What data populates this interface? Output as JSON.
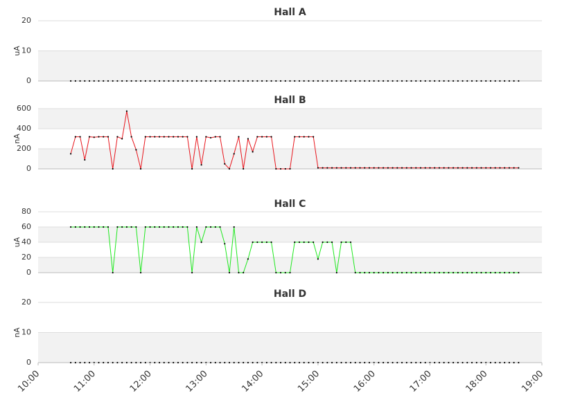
{
  "chart_data": [
    {
      "type": "line",
      "title": "Hall A",
      "ylabel": "uA",
      "x": [
        "10:35",
        "10:40",
        "10:45",
        "10:50",
        "10:55",
        "11:00",
        "11:05",
        "11:10",
        "11:15",
        "11:20",
        "11:25",
        "11:30",
        "11:35",
        "11:40",
        "11:45",
        "11:50",
        "11:55",
        "12:00",
        "12:05",
        "12:10",
        "12:15",
        "12:20",
        "12:25",
        "12:30",
        "12:35",
        "12:40",
        "12:45",
        "12:50",
        "12:55",
        "13:00",
        "13:05",
        "13:10",
        "13:15",
        "13:20",
        "13:25",
        "13:30",
        "13:35",
        "13:40",
        "13:45",
        "13:50",
        "13:55",
        "14:00",
        "14:05",
        "14:10",
        "14:15",
        "14:20",
        "14:25",
        "14:30",
        "14:35",
        "14:40",
        "14:45",
        "14:50",
        "14:55",
        "15:00",
        "15:05",
        "15:10",
        "15:15",
        "15:20",
        "15:25",
        "15:30",
        "15:35",
        "15:40",
        "15:45",
        "15:50",
        "15:55",
        "16:00",
        "16:05",
        "16:10",
        "16:15",
        "16:20",
        "16:25",
        "16:30",
        "16:35",
        "16:40",
        "16:45",
        "16:50",
        "16:55",
        "17:00",
        "17:05",
        "17:10",
        "17:15",
        "17:20",
        "17:25",
        "17:30",
        "17:35",
        "17:40",
        "17:45",
        "17:50",
        "17:55",
        "18:00",
        "18:05",
        "18:10",
        "18:15",
        "18:20",
        "18:25",
        "18:30",
        "18:35"
      ],
      "values": [
        0,
        0,
        0,
        0,
        0,
        0,
        0,
        0,
        0,
        0,
        0,
        0,
        0,
        0,
        0,
        0,
        0,
        0,
        0,
        0,
        0,
        0,
        0,
        0,
        0,
        0,
        0,
        0,
        0,
        0,
        0,
        0,
        0,
        0,
        0,
        0,
        0,
        0,
        0,
        0,
        0,
        0,
        0,
        0,
        0,
        0,
        0,
        0,
        0,
        0,
        0,
        0,
        0,
        0,
        0,
        0,
        0,
        0,
        0,
        0,
        0,
        0,
        0,
        0,
        0,
        0,
        0,
        0,
        0,
        0,
        0,
        0,
        0,
        0,
        0,
        0,
        0,
        0,
        0,
        0,
        0,
        0,
        0,
        0,
        0,
        0,
        0,
        0,
        0,
        0,
        0,
        0,
        0,
        0,
        0,
        0,
        0
      ],
      "xlim": [
        "10:00",
        "19:00"
      ],
      "ylim": [
        0,
        20
      ],
      "yticks": [
        0,
        10,
        20
      ],
      "grid": true
    },
    {
      "type": "line",
      "title": "Hall B",
      "ylabel": "nA",
      "color": "#e8141b",
      "x": [
        "10:35",
        "10:40",
        "10:45",
        "10:50",
        "10:55",
        "11:00",
        "11:05",
        "11:10",
        "11:15",
        "11:20",
        "11:25",
        "11:30",
        "11:35",
        "11:40",
        "11:45",
        "11:50",
        "11:55",
        "12:00",
        "12:05",
        "12:10",
        "12:15",
        "12:20",
        "12:25",
        "12:30",
        "12:35",
        "12:40",
        "12:45",
        "12:50",
        "12:55",
        "13:00",
        "13:05",
        "13:10",
        "13:15",
        "13:20",
        "13:25",
        "13:30",
        "13:35",
        "13:40",
        "13:45",
        "13:50",
        "13:55",
        "14:00",
        "14:05",
        "14:10",
        "14:15",
        "14:20",
        "14:25",
        "14:30",
        "14:35",
        "14:40",
        "14:45",
        "14:50",
        "14:55",
        "15:00",
        "15:05",
        "15:10",
        "15:15",
        "15:20",
        "15:25",
        "15:30",
        "15:35",
        "15:40",
        "15:45",
        "15:50",
        "15:55",
        "16:00",
        "16:05",
        "16:10",
        "16:15",
        "16:20",
        "16:25",
        "16:30",
        "16:35",
        "16:40",
        "16:45",
        "16:50",
        "16:55",
        "17:00",
        "17:05",
        "17:10",
        "17:15",
        "17:20",
        "17:25",
        "17:30",
        "17:35",
        "17:40",
        "17:45",
        "17:50",
        "17:55",
        "18:00",
        "18:05",
        "18:10",
        "18:15",
        "18:20",
        "18:25",
        "18:30",
        "18:35"
      ],
      "values": [
        150,
        320,
        320,
        90,
        320,
        315,
        320,
        320,
        320,
        0,
        320,
        300,
        575,
        320,
        190,
        0,
        320,
        320,
        320,
        320,
        320,
        320,
        320,
        320,
        320,
        320,
        0,
        320,
        40,
        320,
        310,
        320,
        320,
        50,
        0,
        150,
        320,
        0,
        300,
        170,
        320,
        320,
        320,
        320,
        0,
        0,
        0,
        0,
        320,
        320,
        320,
        320,
        320,
        10,
        10,
        10,
        10,
        10,
        10,
        10,
        10,
        10,
        10,
        10,
        10,
        10,
        10,
        10,
        10,
        10,
        10,
        10,
        10,
        10,
        10,
        10,
        10,
        10,
        10,
        10,
        10,
        10,
        10,
        10,
        10,
        10,
        10,
        10,
        10,
        10,
        10,
        10,
        10,
        10,
        10,
        10,
        10
      ],
      "xlim": [
        "10:00",
        "19:00"
      ],
      "ylim": [
        0,
        600
      ],
      "yticks": [
        0,
        200,
        400,
        600
      ],
      "grid": true
    },
    {
      "type": "line",
      "title": "Hall C",
      "ylabel": "uA",
      "color": "#1ee81e",
      "x": [
        "10:35",
        "10:40",
        "10:45",
        "10:50",
        "10:55",
        "11:00",
        "11:05",
        "11:10",
        "11:15",
        "11:20",
        "11:25",
        "11:30",
        "11:35",
        "11:40",
        "11:45",
        "11:50",
        "11:55",
        "12:00",
        "12:05",
        "12:10",
        "12:15",
        "12:20",
        "12:25",
        "12:30",
        "12:35",
        "12:40",
        "12:45",
        "12:50",
        "12:55",
        "13:00",
        "13:05",
        "13:10",
        "13:15",
        "13:20",
        "13:25",
        "13:30",
        "13:35",
        "13:40",
        "13:45",
        "13:50",
        "13:55",
        "14:00",
        "14:05",
        "14:10",
        "14:15",
        "14:20",
        "14:25",
        "14:30",
        "14:35",
        "14:40",
        "14:45",
        "14:50",
        "14:55",
        "15:00",
        "15:05",
        "15:10",
        "15:15",
        "15:20",
        "15:25",
        "15:30",
        "15:35",
        "15:40",
        "15:45",
        "15:50",
        "15:55",
        "16:00",
        "16:05",
        "16:10",
        "16:15",
        "16:20",
        "16:25",
        "16:30",
        "16:35",
        "16:40",
        "16:45",
        "16:50",
        "16:55",
        "17:00",
        "17:05",
        "17:10",
        "17:15",
        "17:20",
        "17:25",
        "17:30",
        "17:35",
        "17:40",
        "17:45",
        "17:50",
        "17:55",
        "18:00",
        "18:05",
        "18:10",
        "18:15",
        "18:20",
        "18:25",
        "18:30",
        "18:35"
      ],
      "values": [
        60,
        60,
        60,
        60,
        60,
        60,
        60,
        60,
        60,
        0,
        60,
        60,
        60,
        60,
        60,
        0,
        60,
        60,
        60,
        60,
        60,
        60,
        60,
        60,
        60,
        60,
        0,
        60,
        40,
        60,
        60,
        60,
        60,
        38,
        0,
        60,
        0,
        0,
        18,
        40,
        40,
        40,
        40,
        40,
        0,
        0,
        0,
        0,
        40,
        40,
        40,
        40,
        40,
        18,
        40,
        40,
        40,
        0,
        40,
        40,
        40,
        0,
        0,
        0,
        0,
        0,
        0,
        0,
        0,
        0,
        0,
        0,
        0,
        0,
        0,
        0,
        0,
        0,
        0,
        0,
        0,
        0,
        0,
        0,
        0,
        0,
        0,
        0,
        0,
        0,
        0,
        0,
        0,
        0,
        0,
        0,
        0
      ],
      "xlim": [
        "10:00",
        "19:00"
      ],
      "ylim": [
        0,
        80
      ],
      "yticks": [
        0,
        20,
        40,
        60,
        80
      ],
      "grid": true
    },
    {
      "type": "line",
      "title": "Hall D",
      "ylabel": "nA",
      "x": [
        "10:35",
        "10:40",
        "10:45",
        "10:50",
        "10:55",
        "11:00",
        "11:05",
        "11:10",
        "11:15",
        "11:20",
        "11:25",
        "11:30",
        "11:35",
        "11:40",
        "11:45",
        "11:50",
        "11:55",
        "12:00",
        "12:05",
        "12:10",
        "12:15",
        "12:20",
        "12:25",
        "12:30",
        "12:35",
        "12:40",
        "12:45",
        "12:50",
        "12:55",
        "13:00",
        "13:05",
        "13:10",
        "13:15",
        "13:20",
        "13:25",
        "13:30",
        "13:35",
        "13:40",
        "13:45",
        "13:50",
        "13:55",
        "14:00",
        "14:05",
        "14:10",
        "14:15",
        "14:20",
        "14:25",
        "14:30",
        "14:35",
        "14:40",
        "14:45",
        "14:50",
        "14:55",
        "15:00",
        "15:05",
        "15:10",
        "15:15",
        "15:20",
        "15:25",
        "15:30",
        "15:35",
        "15:40",
        "15:45",
        "15:50",
        "15:55",
        "16:00",
        "16:05",
        "16:10",
        "16:15",
        "16:20",
        "16:25",
        "16:30",
        "16:35",
        "16:40",
        "16:45",
        "16:50",
        "16:55",
        "17:00",
        "17:05",
        "17:10",
        "17:15",
        "17:20",
        "17:25",
        "17:30",
        "17:35",
        "17:40",
        "17:45",
        "17:50",
        "17:55",
        "18:00",
        "18:05",
        "18:10",
        "18:15",
        "18:20",
        "18:25",
        "18:30",
        "18:35"
      ],
      "values": [
        0,
        0,
        0,
        0,
        0,
        0,
        0,
        0,
        0,
        0,
        0,
        0,
        0,
        0,
        0,
        0,
        0,
        0,
        0,
        0,
        0,
        0,
        0,
        0,
        0,
        0,
        0,
        0,
        0,
        0,
        0,
        0,
        0,
        0,
        0,
        0,
        0,
        0,
        0,
        0,
        0,
        0,
        0,
        0,
        0,
        0,
        0,
        0,
        0,
        0,
        0,
        0,
        0,
        0,
        0,
        0,
        0,
        0,
        0,
        0,
        0,
        0,
        0,
        0,
        0,
        0,
        0,
        0,
        0,
        0,
        0,
        0,
        0,
        0,
        0,
        0,
        0,
        0,
        0,
        0,
        0,
        0,
        0,
        0,
        0,
        0,
        0,
        0,
        0,
        0,
        0,
        0,
        0,
        0,
        0,
        0,
        0
      ],
      "xlim": [
        "10:00",
        "19:00"
      ],
      "ylim": [
        0,
        20
      ],
      "yticks": [
        0,
        10,
        20
      ],
      "grid": true,
      "xticks": [
        "10:00",
        "11:00",
        "12:00",
        "13:00",
        "14:00",
        "15:00",
        "16:00",
        "17:00",
        "18:00",
        "19:00"
      ]
    }
  ]
}
